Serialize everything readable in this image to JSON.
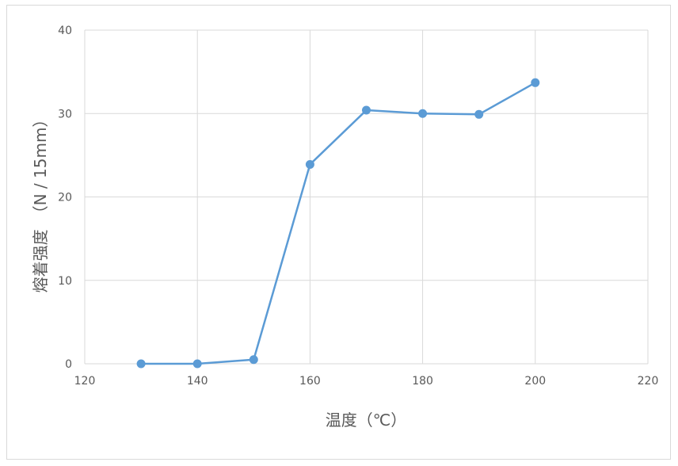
{
  "chart_data": {
    "type": "scatter",
    "xlabel": "温度（℃）",
    "ylabel": "熔着强度　（N / 15mm）",
    "xlim": [
      120,
      220
    ],
    "ylim": [
      0,
      40
    ],
    "xticks": [
      "120",
      "140",
      "160",
      "180",
      "200",
      "220"
    ],
    "yticks": [
      "0",
      "10",
      "20",
      "30",
      "40"
    ],
    "grid": true,
    "line_color": "#5b9bd5",
    "series": [
      {
        "x": [
          130,
          140,
          150,
          160,
          170,
          180,
          190,
          200
        ],
        "y": [
          0.0,
          0.0,
          0.5,
          23.9,
          30.4,
          30.0,
          29.9,
          33.7
        ]
      }
    ]
  }
}
